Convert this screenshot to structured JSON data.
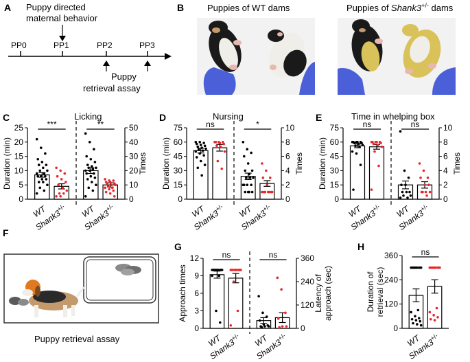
{
  "colors": {
    "wt": "#000000",
    "shank3": "#e8262b",
    "bar_fill": "#ffffff",
    "photo_bg": "#f2f2f2",
    "glove": "#4a5fd8",
    "pup_black": "#1a1a1a",
    "pup_white": "#f0eee8",
    "pup_tan": "#c49a6c",
    "pup_yellow": "#d9c25a",
    "cage": "#333333",
    "beagle_orange": "#e07a20"
  },
  "panelA": {
    "label": "A",
    "timepoints": [
      "PP0",
      "PP1",
      "PP2",
      "PP3"
    ],
    "annotation_top_line1": "Puppy directed",
    "annotation_top_line2": "maternal behavior",
    "annotation_bottom_line1": "Puppy",
    "annotation_bottom_line2": "retrieval assay"
  },
  "panelB": {
    "label": "B",
    "title_wt": "Puppies of WT dams",
    "title_shank3_prefix": "Puppies of ",
    "title_shank3_gene": "Shank3",
    "title_shank3_sup": "+/-",
    "title_shank3_suffix": " dams"
  },
  "panelF": {
    "label": "F",
    "caption": "Puppy retrieval assay"
  },
  "groups": {
    "wt": "WT",
    "shank3_gene": "Shank3",
    "shank3_sup": "+/-"
  },
  "chart_data": [
    {
      "panel": "C",
      "type": "bar",
      "title": "Licking",
      "ylabel": "Duration (min)",
      "y2label": "Times",
      "ylim": [
        0,
        25
      ],
      "yticks": [
        0,
        5,
        10,
        15,
        20,
        25
      ],
      "y2lim": [
        0,
        50
      ],
      "y2ticks": [
        0,
        10,
        20,
        30,
        40,
        50
      ],
      "categories": [
        "WT",
        "Shank3+/-"
      ],
      "sections": [
        {
          "axis": "left",
          "significance": "***",
          "values": [
            8.5,
            4.5
          ],
          "errors": [
            0.8,
            0.9
          ],
          "points": [
            [
              21,
              18,
              16,
              14,
              13,
              12,
              12,
              11,
              10,
              10,
              9,
              9,
              8,
              8,
              8,
              7,
              7,
              6,
              6,
              5,
              4,
              3,
              2
            ],
            [
              11,
              10,
              9,
              8,
              7,
              6,
              5,
              4,
              3,
              2,
              2,
              1,
              1
            ]
          ]
        },
        {
          "axis": "right",
          "significance": "**",
          "values": [
            20,
            10
          ],
          "errors": [
            2,
            1.5
          ],
          "points": [
            [
              46,
              40,
              35,
              30,
              28,
              26,
              24,
              23,
              22,
              22,
              21,
              20,
              20,
              18,
              18,
              16,
              15,
              14,
              12,
              10,
              8,
              6,
              2
            ],
            [
              14,
              13,
              13,
              12,
              12,
              11,
              11,
              10,
              10,
              9,
              8,
              8,
              7,
              6,
              5,
              4,
              2
            ]
          ]
        }
      ]
    },
    {
      "panel": "D",
      "type": "bar",
      "title": "Nursing",
      "ylabel": "Duration (min)",
      "y2label": "Times",
      "ylim": [
        0,
        75
      ],
      "yticks": [
        0,
        15,
        30,
        45,
        60,
        75
      ],
      "y2lim": [
        0,
        10
      ],
      "y2ticks": [
        0,
        2,
        4,
        6,
        8,
        10
      ],
      "categories": [
        "WT",
        "Shank3+/-"
      ],
      "sections": [
        {
          "axis": "left",
          "significance": "ns",
          "values": [
            51,
            54
          ],
          "errors": [
            2.5,
            3.5
          ],
          "points": [
            [
              60,
              60,
              59,
              58,
              57,
              56,
              55,
              54,
              53,
              52,
              51,
              50,
              48,
              46,
              44,
              40,
              36,
              33,
              25
            ],
            [
              60,
              60,
              60,
              60,
              59,
              58,
              56,
              55,
              50,
              40,
              32
            ]
          ]
        },
        {
          "axis": "right",
          "significance": "*",
          "values": [
            3.2,
            2.2
          ],
          "errors": [
            0.45,
            0.4
          ],
          "points": [
            [
              8,
              7,
              6.5,
              6,
              5,
              4,
              4,
              3.5,
              3,
              3,
              3,
              2,
              2,
              2,
              2,
              1,
              1,
              1,
              1
            ],
            [
              5,
              4,
              3,
              3,
              2,
              1,
              1,
              1,
              1,
              1,
              1,
              1
            ]
          ]
        }
      ]
    },
    {
      "panel": "E",
      "type": "bar",
      "title": "Time in whelping box",
      "ylabel": "Duration (min)",
      "y2label": "Times",
      "ylim": [
        0,
        75
      ],
      "yticks": [
        0,
        15,
        30,
        45,
        60,
        75
      ],
      "y2lim": [
        0,
        10
      ],
      "y2ticks": [
        0,
        2,
        4,
        6,
        8,
        10
      ],
      "categories": [
        "WT",
        "Shank3+/-"
      ],
      "sections": [
        {
          "axis": "left",
          "significance": "ns",
          "values": [
            56,
            55
          ],
          "errors": [
            2,
            2.5
          ],
          "points": [
            [
              60,
              60,
              60,
              60,
              60,
              59,
              59,
              58,
              57,
              56,
              55,
              50,
              48,
              36,
              10
            ],
            [
              60,
              60,
              60,
              60,
              60,
              59,
              58,
              57,
              55,
              50,
              35,
              10
            ]
          ]
        },
        {
          "axis": "right",
          "significance": "ns",
          "values": [
            2.0,
            2.0
          ],
          "errors": [
            0.55,
            0.45
          ],
          "points": [
            [
              9.5,
              4,
              3,
              2,
              2,
              1,
              1,
              1,
              0.5,
              0.5,
              0.2,
              0.2
            ],
            [
              5,
              4,
              3,
              3,
              2,
              2,
              1,
              1,
              1,
              1,
              0.5
            ]
          ]
        }
      ]
    },
    {
      "panel": "G",
      "type": "bar",
      "ylabel": "Approach times",
      "y2label": "Latency of approach (sec)",
      "ylim": [
        0,
        12
      ],
      "yticks": [
        0,
        3,
        6,
        9,
        12
      ],
      "y2lim": [
        0,
        360
      ],
      "y2ticks": [
        0,
        120,
        240,
        360
      ],
      "categories": [
        "WT",
        "Shank3+/-"
      ],
      "sections": [
        {
          "axis": "left",
          "significance": "ns",
          "values": [
            9.2,
            8.6
          ],
          "errors": [
            0.6,
            0.8
          ],
          "points": [
            [
              10,
              10,
              10,
              10,
              10,
              10,
              10,
              10,
              10,
              10,
              9,
              9,
              3,
              1
            ],
            [
              10,
              10,
              10,
              10,
              10,
              10,
              10,
              10,
              10,
              8,
              3,
              0.5
            ]
          ]
        },
        {
          "axis": "right",
          "significance": "ns",
          "values": [
            40,
            55
          ],
          "errors": [
            15,
            25
          ],
          "points": [
            [
              165,
              80,
              60,
              40,
              20,
              15,
              10,
              10,
              10,
              5
            ],
            [
              260,
              200,
              80,
              50,
              10,
              10,
              5
            ]
          ]
        }
      ]
    },
    {
      "panel": "H",
      "type": "bar",
      "ylabel": "Duration of retrieval (sec)",
      "ylim": [
        0,
        360
      ],
      "yticks": [
        0,
        120,
        240,
        360
      ],
      "categories": [
        "WT",
        "Shank3+/-"
      ],
      "sections": [
        {
          "axis": "left",
          "significance": "ns",
          "values": [
            163,
            207
          ],
          "errors": [
            32,
            33
          ],
          "points": [
            [
              300,
              300,
              300,
              300,
              300,
              300,
              300,
              300,
              300,
              300,
              90,
              80,
              60,
              50,
              45,
              40,
              35,
              25,
              20,
              15
            ],
            [
              300,
              300,
              300,
              300,
              300,
              300,
              300,
              300,
              300,
              300,
              100,
              80,
              65,
              55,
              45,
              40
            ]
          ]
        }
      ]
    }
  ]
}
